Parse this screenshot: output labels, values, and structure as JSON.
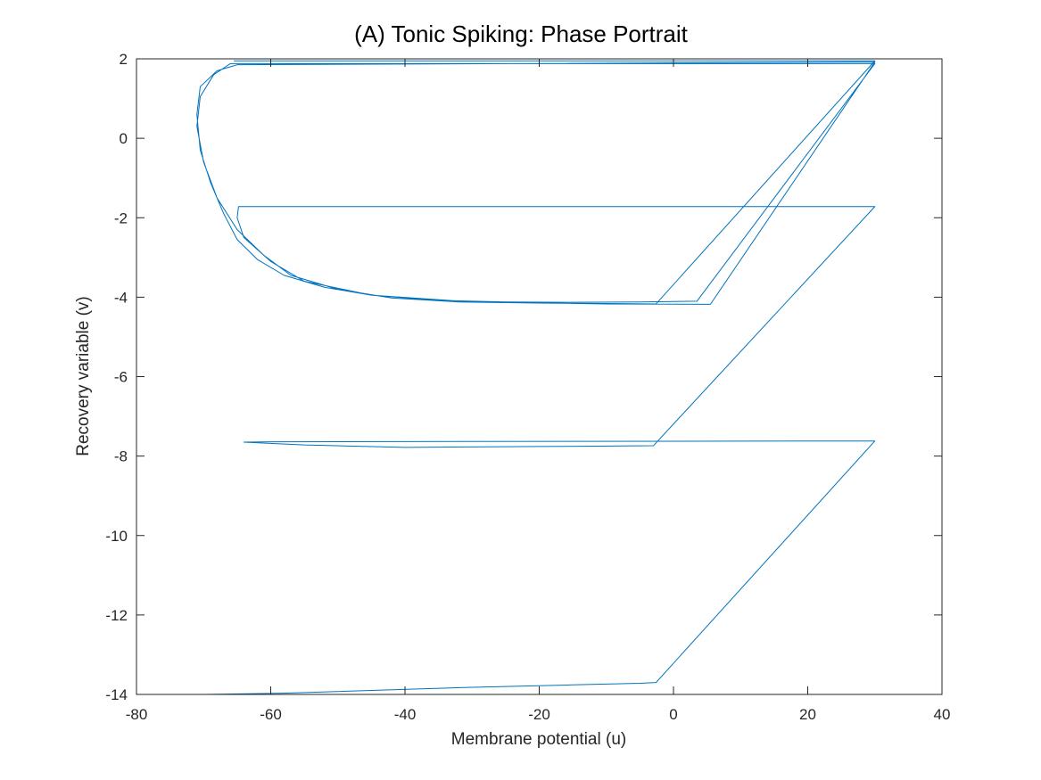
{
  "chart_data": {
    "type": "line",
    "title": "(A) Tonic Spiking: Phase Portrait",
    "xlabel": "Membrane potential (u)",
    "ylabel": "Recovery variable (v)",
    "xlim": [
      -80,
      40
    ],
    "ylim": [
      -14,
      2
    ],
    "xticks": [
      -80,
      -60,
      -40,
      -20,
      0,
      20,
      40
    ],
    "yticks": [
      -14,
      -12,
      -10,
      -8,
      -6,
      -4,
      -2,
      0,
      2
    ],
    "grid": false,
    "box": true,
    "series_color": "#0072BD",
    "series": [
      {
        "x": [
          -70,
          -58,
          -45,
          -30,
          -15,
          -5,
          -2.6,
          30,
          -60,
          -64,
          -55,
          -40,
          -20,
          -3,
          30,
          -64.8,
          -65,
          -64,
          -60,
          -55,
          -45,
          -30,
          -10,
          5.5,
          30,
          -65,
          -68,
          -70.5,
          -71,
          -70.5,
          -69,
          -67,
          -65,
          -62,
          -58,
          -52,
          -45,
          -35,
          -25,
          -15,
          -5,
          3.5,
          30,
          -66,
          -68.5,
          -70.5,
          -71,
          -70,
          -68,
          -65,
          -61,
          -57,
          -50,
          -42,
          -32,
          -20,
          -10,
          -2.6,
          30,
          -65.5
        ],
        "y": [
          -14,
          -13.97,
          -13.9,
          -13.82,
          -13.76,
          -13.72,
          -13.7,
          -7.62,
          -7.64,
          -7.65,
          -7.72,
          -7.78,
          -7.76,
          -7.74,
          -1.72,
          -1.72,
          -2.0,
          -2.5,
          -3.1,
          -3.6,
          -3.95,
          -4.12,
          -4.17,
          -4.18,
          1.92,
          1.85,
          1.7,
          1.3,
          0.6,
          -0.3,
          -1.1,
          -1.9,
          -2.55,
          -3.05,
          -3.45,
          -3.75,
          -3.95,
          -4.08,
          -4.12,
          -4.13,
          -4.12,
          -4.1,
          1.88,
          1.88,
          1.6,
          1.05,
          0.3,
          -0.6,
          -1.5,
          -2.3,
          -2.95,
          -3.45,
          -3.8,
          -4.02,
          -4.12,
          -4.15,
          -4.16,
          -4.17,
          1.95,
          1.95
        ]
      }
    ]
  }
}
